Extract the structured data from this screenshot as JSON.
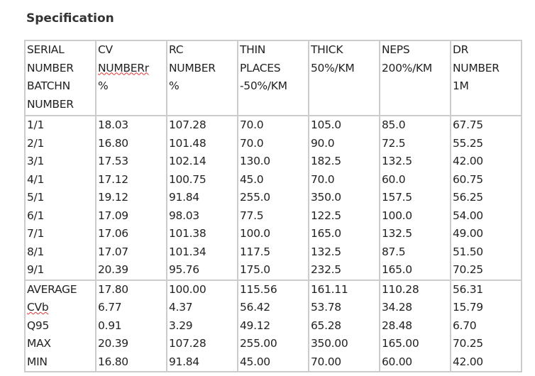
{
  "title": "Specification",
  "headers": [
    [
      "SERIAL",
      "NUMBER",
      "BATCHN",
      "NUMBER"
    ],
    [
      "CV",
      "NUMBERr",
      "%"
    ],
    [
      "RC",
      "NUMBER",
      "%"
    ],
    [
      "THIN",
      "PLACES",
      "-50%/KM"
    ],
    [
      "THICK",
      "50%/KM"
    ],
    [
      "NEPS",
      "200%/KM"
    ],
    [
      "DR",
      "NUMBER",
      "1M"
    ]
  ],
  "rows": [
    [
      "1/1",
      "18.03",
      "107.28",
      "70.0",
      "105.0",
      "85.0",
      "67.75"
    ],
    [
      "2/1",
      "16.80",
      "101.48",
      "70.0",
      "90.0",
      "72.5",
      "55.25"
    ],
    [
      "3/1",
      "17.53",
      "102.14",
      "130.0",
      "182.5",
      "132.5",
      "42.00"
    ],
    [
      "4/1",
      "17.12",
      "100.75",
      "45.0",
      "70.0",
      "60.0",
      "60.75"
    ],
    [
      "5/1",
      "19.12",
      "91.84",
      "255.0",
      "350.0",
      "157.5",
      "56.25"
    ],
    [
      "6/1",
      "17.09",
      "98.03",
      "77.5",
      "122.5",
      "100.0",
      "54.00"
    ],
    [
      "7/1",
      "17.06",
      "101.38",
      "100.0",
      "165.0",
      "132.5",
      "49.00"
    ],
    [
      "8/1",
      "17.07",
      "101.34",
      "117.5",
      "132.5",
      "87.5",
      "51.50"
    ],
    [
      "9/1",
      "20.39",
      "95.76",
      "175.0",
      "232.5",
      "165.0",
      "70.25"
    ]
  ],
  "stats": [
    [
      "AVERAGE",
      "17.80",
      "100.00",
      "115.56",
      "161.11",
      "110.28",
      "56.31"
    ],
    [
      "CVb",
      "6.77",
      "4.37",
      "56.42",
      "53.78",
      "34.28",
      "15.79"
    ],
    [
      "Q95",
      "0.91",
      "3.29",
      "49.12",
      "65.28",
      "28.48",
      "6.70"
    ],
    [
      "MAX",
      "20.39",
      "107.28",
      "255.00",
      "350.00",
      "165.00",
      "70.25"
    ],
    [
      "MIN",
      "16.80",
      "91.84",
      "45.00",
      "70.00",
      "60.00",
      "42.00"
    ]
  ]
}
